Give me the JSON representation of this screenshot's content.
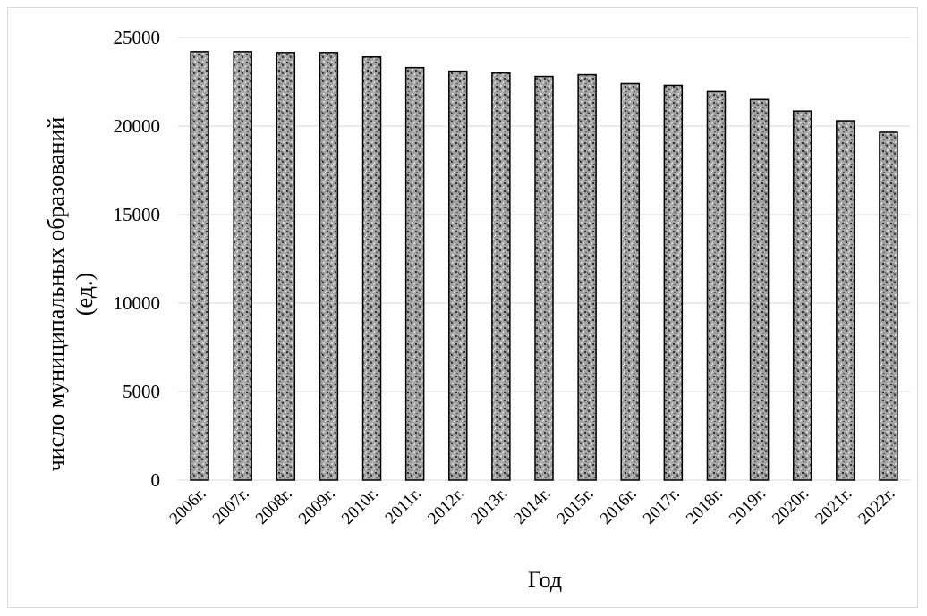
{
  "chart_data": {
    "type": "bar",
    "title": "",
    "xlabel": "Год",
    "ylabel_line1": "число муниципальных образований",
    "ylabel_line2": "(ед.)",
    "categories": [
      "2006г.",
      "2007г.",
      "2008г.",
      "2009г.",
      "2010г.",
      "2011г.",
      "2012г.",
      "2013г.",
      "2014г.",
      "2015г.",
      "2016г.",
      "2017г.",
      "2018г.",
      "2019г.",
      "2020г.",
      "2021г.",
      "2022г."
    ],
    "values": [
      24200,
      24200,
      24150,
      24150,
      23900,
      23300,
      23100,
      23000,
      22800,
      22900,
      22400,
      22300,
      21950,
      21500,
      20850,
      20300,
      19650
    ],
    "ylim": [
      0,
      25000
    ],
    "yticks": [
      0,
      5000,
      10000,
      15000,
      20000,
      25000
    ],
    "grid": true,
    "legend": "none",
    "colors": {
      "bar_fill": "#8c8c8c",
      "bar_stroke": "#000000",
      "grid": "#d9d9d9"
    }
  }
}
